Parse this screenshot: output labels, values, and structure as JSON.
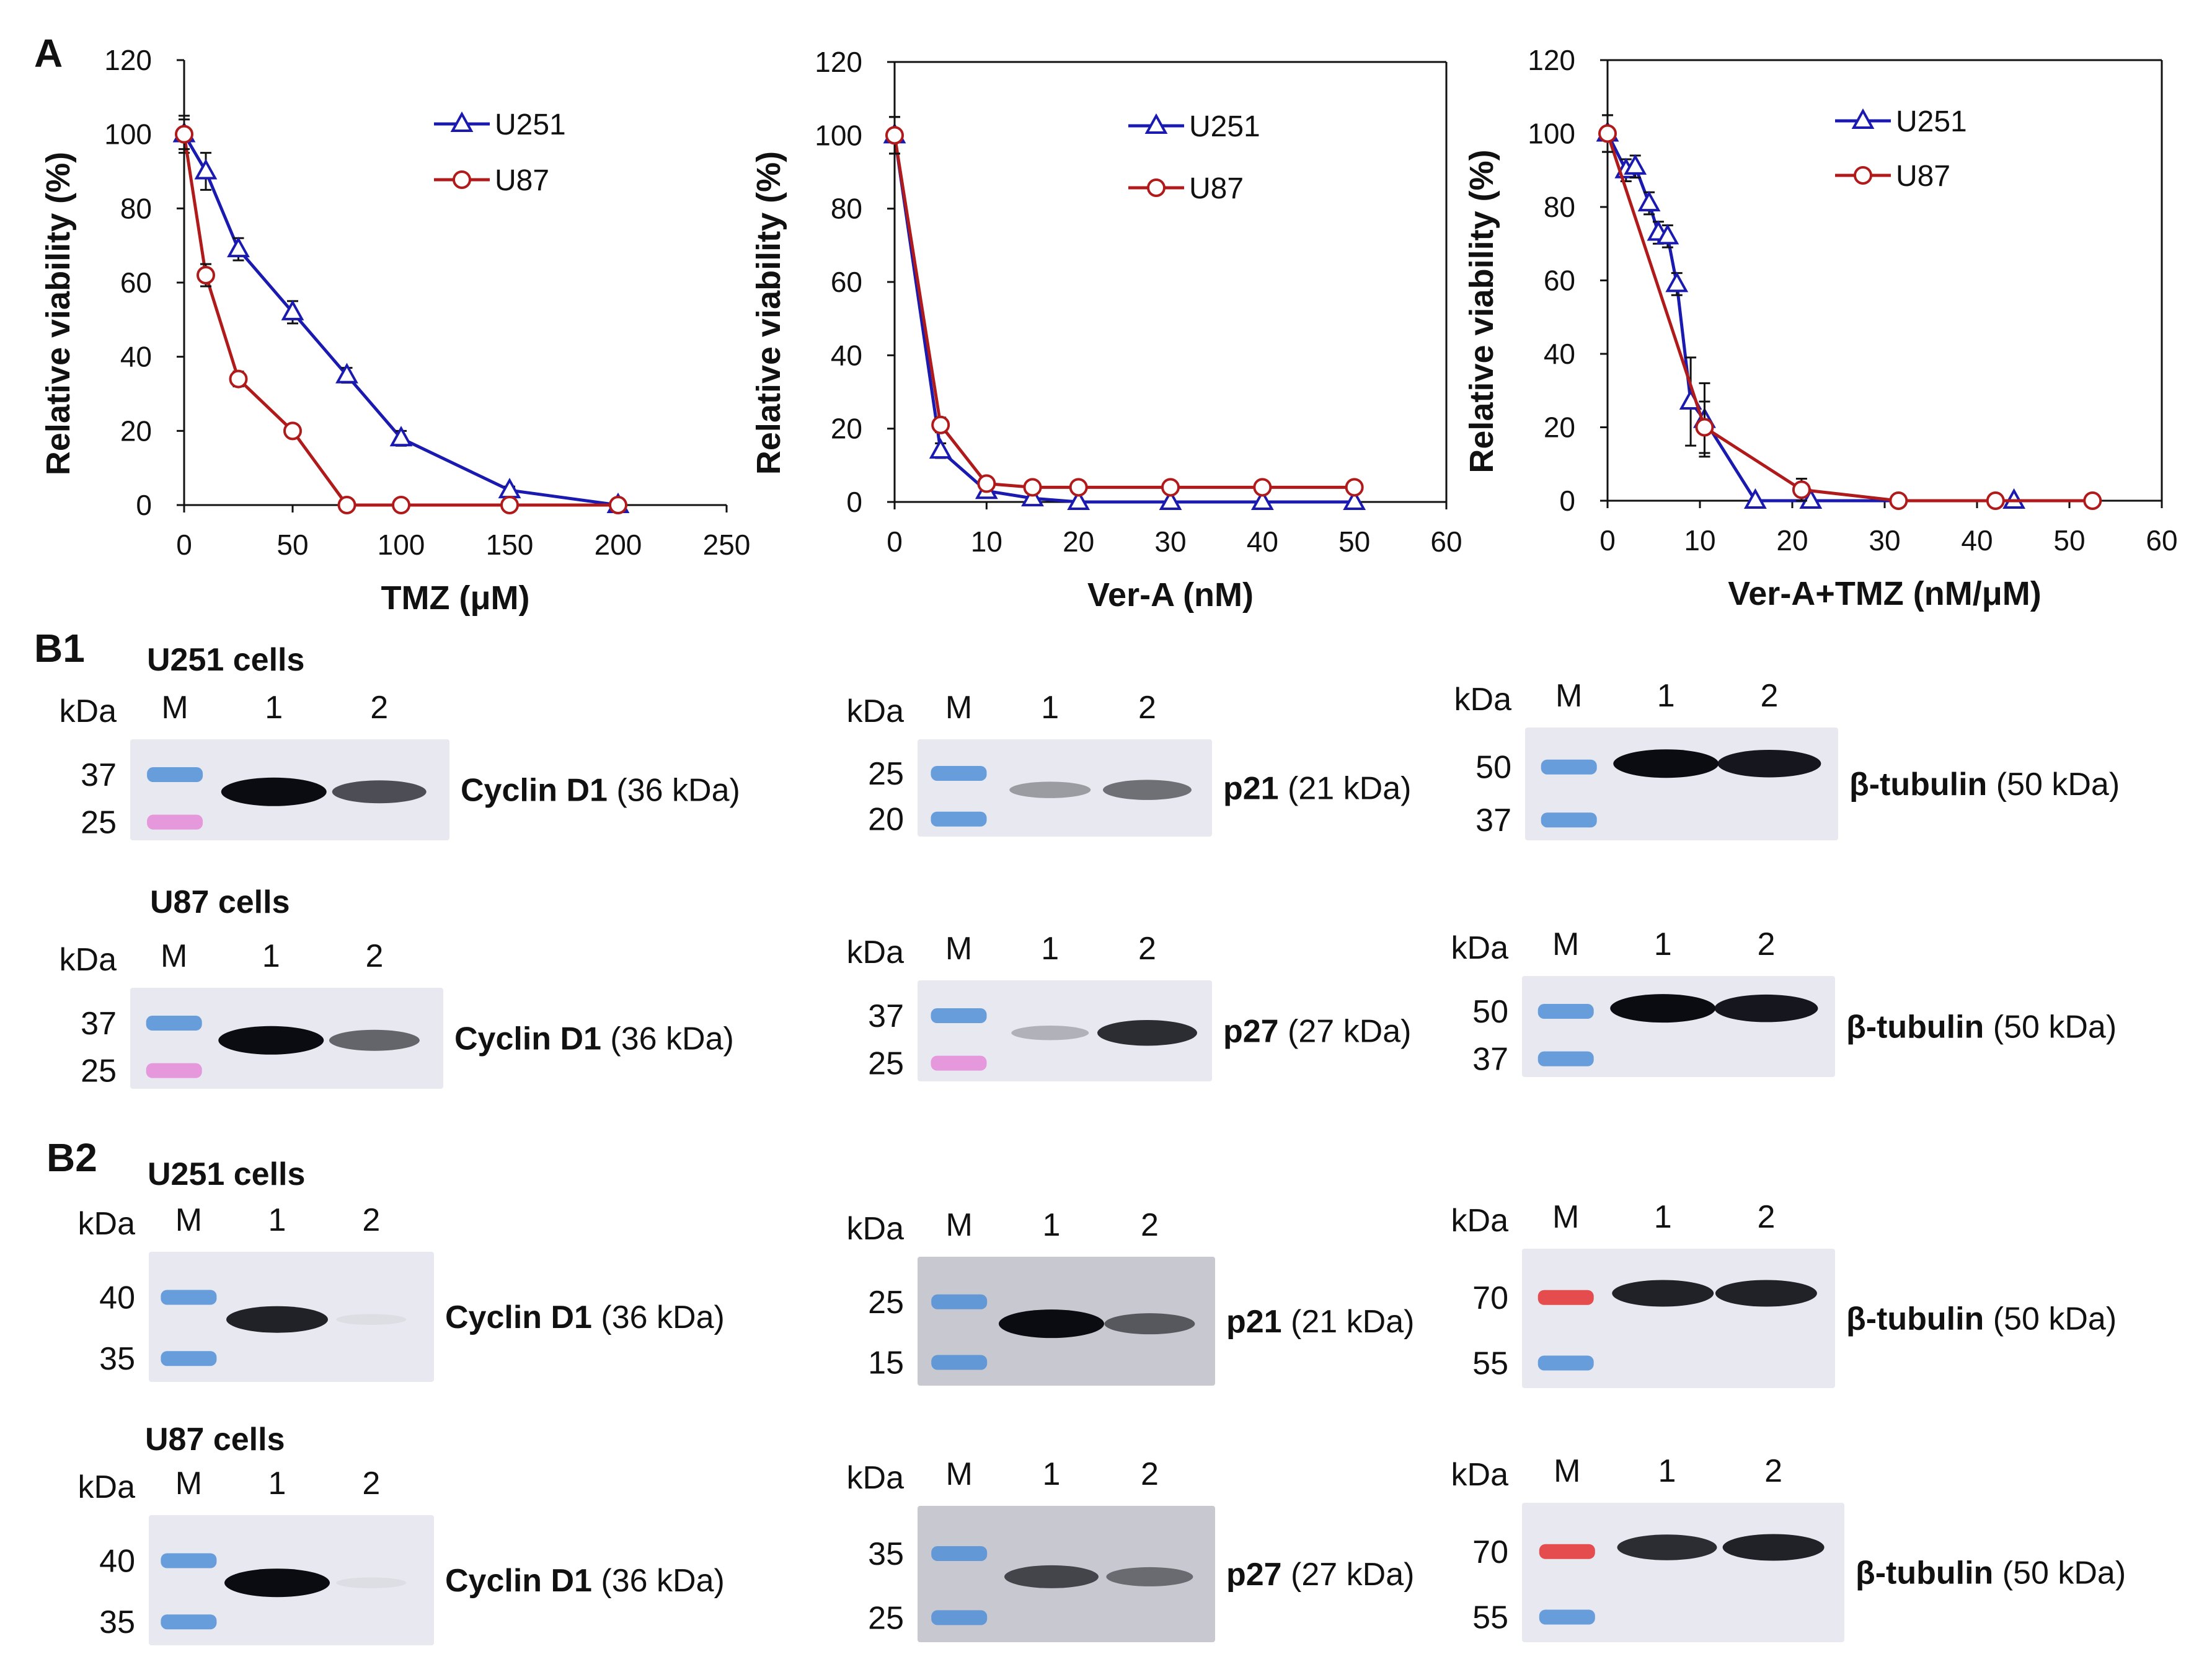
{
  "panels": {
    "a": "A",
    "b1": "B1",
    "b2": "B2"
  },
  "colors": {
    "u251": "#1a1ab0",
    "u87": "#b01a1a",
    "band": "#0b0b12",
    "membrane": "#e8e8f0",
    "ladder_blue": "#4f8fd6",
    "ladder_pink": "#e58ad8",
    "ladder_red": "#e33030"
  },
  "chart_data": [
    {
      "type": "line",
      "title": "",
      "xlabel": "TMZ (μM)",
      "ylabel": "Relative viability (%)",
      "xlim": [
        0,
        250
      ],
      "ylim": [
        0,
        120
      ],
      "xticks": [
        0,
        50,
        100,
        150,
        200,
        250
      ],
      "yticks": [
        0,
        20,
        40,
        60,
        80,
        100,
        120
      ],
      "box": false,
      "series": [
        {
          "name": "U251",
          "marker": "triangle",
          "x": [
            0,
            10,
            25,
            50,
            75,
            100,
            150,
            200
          ],
          "y": [
            100,
            90,
            69,
            52,
            35,
            18,
            4,
            0
          ],
          "err": [
            5,
            5,
            3,
            3,
            2,
            2,
            1,
            1
          ]
        },
        {
          "name": "U87",
          "marker": "circle",
          "x": [
            0,
            10,
            25,
            50,
            75,
            100,
            150,
            200
          ],
          "y": [
            100,
            62,
            34,
            20,
            0,
            0,
            0,
            0
          ],
          "err": [
            4,
            3,
            2,
            1,
            0,
            0,
            0,
            0
          ]
        }
      ]
    },
    {
      "type": "line",
      "title": "",
      "xlabel": "Ver-A (nM)",
      "ylabel": "Relative viability (%)",
      "xlim": [
        0,
        60
      ],
      "ylim": [
        0,
        120
      ],
      "xticks": [
        0,
        10,
        20,
        30,
        40,
        50,
        60
      ],
      "yticks": [
        0,
        20,
        40,
        60,
        80,
        100,
        120
      ],
      "box": true,
      "series": [
        {
          "name": "U251",
          "marker": "triangle",
          "x": [
            0,
            5,
            10,
            15,
            20,
            30,
            40,
            50
          ],
          "y": [
            100,
            14,
            3,
            1,
            0,
            0,
            0,
            0
          ],
          "err": [
            5,
            2,
            1,
            0,
            0,
            0,
            0,
            0
          ]
        },
        {
          "name": "U87",
          "marker": "circle",
          "x": [
            0,
            5,
            10,
            15,
            20,
            30,
            40,
            50
          ],
          "y": [
            100,
            21,
            5,
            4,
            4,
            4,
            4,
            4
          ],
          "err": [
            5,
            2,
            1,
            1,
            1,
            1,
            1,
            1
          ]
        }
      ]
    },
    {
      "type": "line",
      "title": "",
      "xlabel": "Ver-A+TMZ (nM/μM)",
      "ylabel": "Relative viability (%)",
      "xlim": [
        0,
        60
      ],
      "ylim": [
        0,
        120
      ],
      "xticks": [
        0,
        10,
        20,
        30,
        40,
        50,
        60
      ],
      "yticks": [
        0,
        20,
        40,
        60,
        80,
        100,
        120
      ],
      "box": true,
      "series": [
        {
          "name": "U251",
          "marker": "triangle",
          "x": [
            0,
            2,
            3,
            4.5,
            5.5,
            6.5,
            7.5,
            9,
            10.5,
            16,
            22,
            44
          ],
          "y": [
            100,
            90,
            91,
            81,
            73,
            72,
            59,
            27,
            22,
            0,
            0,
            0
          ],
          "err": [
            5,
            3,
            3,
            3,
            3,
            3,
            3,
            12,
            10,
            0,
            0,
            0
          ]
        },
        {
          "name": "U87",
          "marker": "circle",
          "x": [
            0,
            10.5,
            21,
            31.5,
            42,
            52.5
          ],
          "y": [
            100,
            20,
            3,
            0,
            0,
            0
          ],
          "err": [
            5,
            7,
            3,
            0,
            0,
            0
          ]
        }
      ]
    }
  ],
  "blots": {
    "b1": {
      "u251": {
        "label": "U251 cells",
        "blots": [
          {
            "kda": "kDa",
            "lanes": [
              "M",
              "1",
              "2"
            ],
            "markers": [
              "37",
              "25"
            ],
            "name": "Cyclin D1",
            "size": "(36 kDa)",
            "bands": [
              1.0,
              0.7
            ],
            "ladder": [
              "blue",
              "pink"
            ]
          },
          {
            "kda": "kDa",
            "lanes": [
              "M",
              "1",
              "2"
            ],
            "markers": [
              "25",
              "20"
            ],
            "name": "p21",
            "size": "(21 kDa)",
            "bands": [
              0.35,
              0.55
            ],
            "ladder": [
              "blue",
              "blue"
            ]
          },
          {
            "kda": "kDa",
            "lanes": [
              "M",
              "1",
              "2"
            ],
            "markers": [
              "50",
              "37"
            ],
            "name": "β-tubulin",
            "size": "(50 kDa)",
            "bands": [
              1.0,
              0.95
            ],
            "ladder": [
              "blue",
              "blue"
            ]
          }
        ]
      },
      "u87": {
        "label": "U87 cells",
        "blots": [
          {
            "kda": "kDa",
            "lanes": [
              "M",
              "1",
              "2"
            ],
            "markers": [
              "37",
              "25"
            ],
            "name": "Cyclin D1",
            "size": "(36 kDa)",
            "bands": [
              1.0,
              0.6
            ],
            "ladder": [
              "blue",
              "pink"
            ]
          },
          {
            "kda": "kDa",
            "lanes": [
              "M",
              "1",
              "2"
            ],
            "markers": [
              "37",
              "25"
            ],
            "name": "p27",
            "size": "(27 kDa)",
            "bands": [
              0.25,
              0.85
            ],
            "ladder": [
              "blue",
              "pink"
            ]
          },
          {
            "kda": "kDa",
            "lanes": [
              "M",
              "1",
              "2"
            ],
            "markers": [
              "50",
              "37"
            ],
            "name": "β-tubulin",
            "size": "(50 kDa)",
            "bands": [
              1.0,
              0.95
            ],
            "ladder": [
              "blue",
              "blue"
            ]
          }
        ]
      }
    },
    "b2": {
      "u251": {
        "label": "U251 cells",
        "blots": [
          {
            "kda": "kDa",
            "lanes": [
              "M",
              "1",
              "2"
            ],
            "markers": [
              "40",
              "35"
            ],
            "name": "Cyclin D1",
            "size": "(36 kDa)",
            "bands": [
              0.9,
              0.05
            ],
            "ladder": [
              "blue",
              "blue"
            ]
          },
          {
            "kda": "kDa",
            "lanes": [
              "M",
              "1",
              "2"
            ],
            "markers": [
              "25",
              "15"
            ],
            "name": "p21",
            "size": "(21 kDa)",
            "bands": [
              1.0,
              0.6
            ],
            "ladder": [
              "blue",
              "blue"
            ]
          },
          {
            "kda": "kDa",
            "lanes": [
              "M",
              "1",
              "2"
            ],
            "markers": [
              "70",
              "55"
            ],
            "name": "β-tubulin",
            "size": "(50 kDa)",
            "bands": [
              0.9,
              0.9
            ],
            "ladder": [
              "red",
              "blue"
            ]
          }
        ]
      },
      "u87": {
        "label": "U87 cells",
        "blots": [
          {
            "kda": "kDa",
            "lanes": [
              "M",
              "1",
              "2"
            ],
            "markers": [
              "40",
              "35"
            ],
            "name": "Cyclin D1",
            "size": "(36 kDa)",
            "bands": [
              1.0,
              0.05
            ],
            "ladder": [
              "blue",
              "blue"
            ]
          },
          {
            "kda": "kDa",
            "lanes": [
              "M",
              "1",
              "2"
            ],
            "markers": [
              "35",
              "25"
            ],
            "name": "p27",
            "size": "(27 kDa)",
            "bands": [
              0.7,
              0.5
            ],
            "ladder": [
              "blue",
              "blue"
            ]
          },
          {
            "kda": "kDa",
            "lanes": [
              "M",
              "1",
              "2"
            ],
            "markers": [
              "70",
              "55"
            ],
            "name": "β-tubulin",
            "size": "(50 kDa)",
            "bands": [
              0.85,
              0.9
            ],
            "ladder": [
              "red",
              "blue"
            ]
          }
        ]
      }
    }
  }
}
